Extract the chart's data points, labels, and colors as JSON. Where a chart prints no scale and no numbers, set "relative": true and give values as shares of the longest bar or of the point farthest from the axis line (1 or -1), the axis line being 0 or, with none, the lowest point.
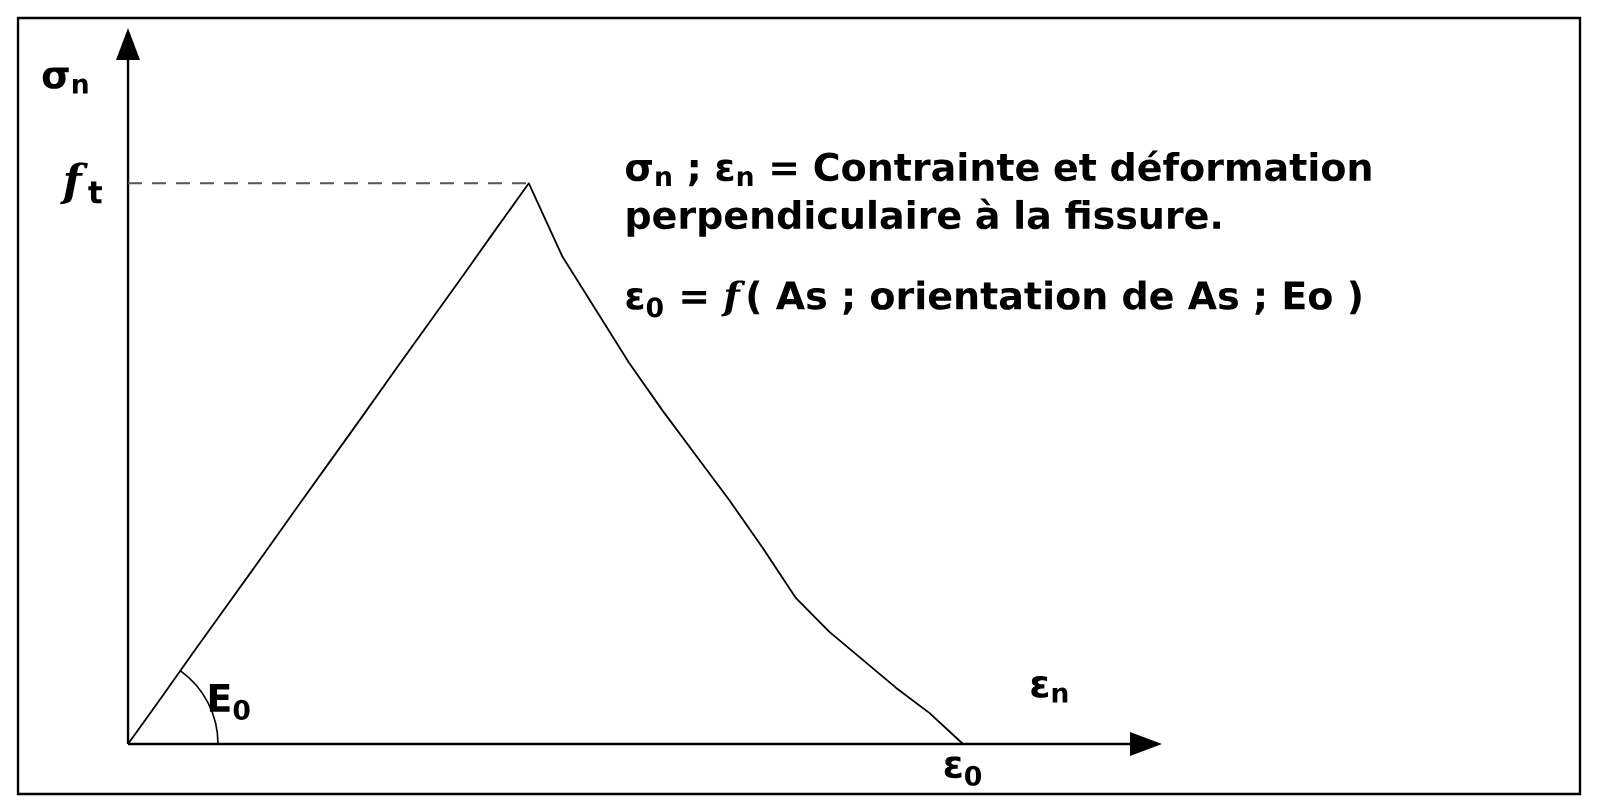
{
  "chart_data": {
    "type": "line",
    "relative": true,
    "xlabel": "ε$_{n}$",
    "ylabel": "σ$_{n}$",
    "categories": [
      null,
      null,
      null,
      null,
      null,
      null,
      null,
      null,
      null,
      null,
      null,
      null,
      null,
      null,
      null,
      null,
      null,
      null,
      null,
      null,
      null,
      null,
      null,
      null,
      null,
      null
    ],
    "values": [
      0,
      0.083,
      0.167,
      0.25,
      0.333,
      0.417,
      0.5,
      0.583,
      0.667,
      0.75,
      0.833,
      0.917,
      1,
      0.87,
      0.775,
      0.68,
      0.595,
      0.515,
      0.435,
      0.35,
      0.26,
      0.2,
      0.15,
      0.1,
      0.055,
      0
    ],
    "color": "#000000",
    "ref_lines": [
      {
        "axis": "y",
        "value": 1,
        "color": "#555555",
        "line_style": "dashed"
      }
    ],
    "annotations": [
      "σ$_{n}$ ; ε$_{n}$ = Contrainte et déformation perpendiculaire à la fissure.",
      "ε$_{0}$ = *f*( As ; orientation de As ; Eo )",
      "E$_{0}$",
      "*f*$_{t}$",
      "ε$_{0}$"
    ]
  }
}
